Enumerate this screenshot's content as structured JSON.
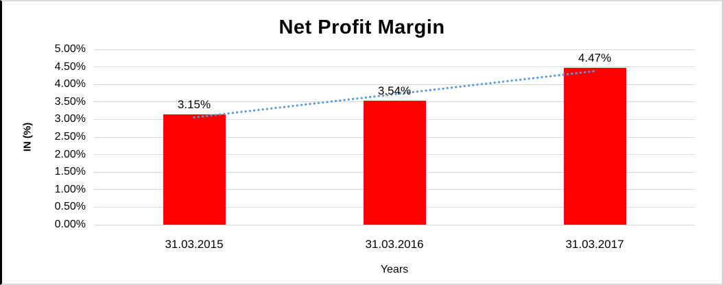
{
  "chart_data": {
    "type": "bar",
    "title": "Net Profit Margin",
    "categories": [
      "31.03.2015",
      "31.03.2016",
      "31.03.2017"
    ],
    "values": [
      3.15,
      3.54,
      4.47
    ],
    "data_labels": [
      "3.15%",
      "3.54%",
      "4.47%"
    ],
    "xlabel": "Years",
    "ylabel": "IN (%)",
    "ylim": [
      0,
      5
    ],
    "ytick_step": 0.5,
    "ytick_labels": [
      "0.00%",
      "0.50%",
      "1.00%",
      "1.50%",
      "2.00%",
      "2.50%",
      "3.00%",
      "3.50%",
      "4.00%",
      "4.50%",
      "5.00%"
    ],
    "grid": true,
    "legend": false,
    "bar_color": "#ff0000",
    "trendline": {
      "type": "linear",
      "style": "dotted",
      "color": "#5b9bd5",
      "start_value": 3.06,
      "end_value": 4.38
    }
  }
}
